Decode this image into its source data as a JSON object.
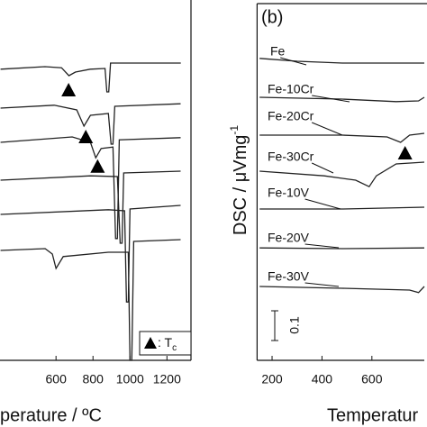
{
  "chart_data": [
    {
      "type": "line",
      "xlabel": "perature / ºC",
      "xlim": [
        297,
        1330
      ],
      "xticks": [
        600,
        800,
        1000,
        1200
      ],
      "ylim": [
        0,
        100
      ],
      "color": "#222",
      "series": [
        {
          "x": [
            300,
            540,
            630,
            670,
            705,
            785,
            865,
            875,
            885,
            895,
            1030,
            1275
          ],
          "values": [
            80.8,
            81.5,
            81.2,
            79,
            80,
            80.8,
            81,
            74.5,
            74.5,
            82.5,
            82.5,
            82.5
          ]
        },
        {
          "x": [
            300,
            590,
            712,
            751,
            786,
            883,
            898,
            908,
            918,
            1274
          ],
          "values": [
            70,
            70.8,
            69.5,
            65,
            68,
            68.5,
            60,
            60,
            70.5,
            71.2
          ]
        },
        {
          "x": [
            300,
            688,
            786,
            815,
            844,
            908,
            922,
            932,
            942,
            1274
          ],
          "values": [
            60.5,
            62,
            60.5,
            56.2,
            58.8,
            59.2,
            33.8,
            33.8,
            61.2,
            61.8
          ]
        },
        {
          "x": [
            300,
            786,
            932,
            947,
            957,
            966,
            1274
          ],
          "values": [
            50,
            51.2,
            51,
            32.5,
            32.5,
            52,
            52.5
          ]
        },
        {
          "x": [
            300,
            883,
            971,
            981,
            991,
            1000,
            1274
          ],
          "values": [
            40.5,
            41.8,
            41.5,
            16.2,
            16.2,
            42,
            43
          ]
        },
        {
          "x": [
            300,
            541,
            580,
            600,
            639,
            883,
            991,
            1000,
            1010,
            1020,
            1274
          ],
          "values": [
            30.5,
            31,
            29.5,
            25.5,
            28.8,
            30,
            30,
            0,
            0,
            33,
            33.5
          ]
        }
      ],
      "markers": [
        {
          "x": 668,
          "y": 75
        },
        {
          "x": 761,
          "y": 62
        },
        {
          "x": 825,
          "y": 53.8
        }
      ],
      "legend": {
        "text": ": T",
        "sub": "c"
      }
    },
    {
      "type": "line",
      "panel_label": "(b)",
      "xlabel": "Temperatur",
      "ylabel": "DSC / μVmg",
      "ylabel_sup": "-1",
      "xlim": [
        140,
        810
      ],
      "xticks": [
        200,
        400,
        600
      ],
      "ylim": [
        0,
        100
      ],
      "color": "#222",
      "scale_bar_label": "0.1",
      "series": [
        {
          "name": "Fe",
          "x": [
            150,
            301,
            481,
            661,
            810
          ],
          "values": [
            83.8,
            83,
            82.5,
            82.5,
            82.5
          ]
        },
        {
          "name": "Fe-10Cr",
          "x": [
            150,
            481,
            697,
            787,
            810
          ],
          "values": [
            73,
            72.5,
            71.8,
            72,
            73
          ]
        },
        {
          "name": "Fe-20Cr",
          "x": [
            150,
            481,
            661,
            715,
            751,
            810
          ],
          "values": [
            62.5,
            62.5,
            62,
            60.5,
            62.5,
            63
          ]
        },
        {
          "name": "Fe-30Cr",
          "x": [
            150,
            409,
            535,
            589,
            618,
            697,
            810
          ],
          "values": [
            52.5,
            51.2,
            50,
            48.2,
            51.2,
            54.5,
            55
          ]
        },
        {
          "name": "Fe-10V",
          "x": [
            150,
            481,
            810
          ],
          "values": [
            42,
            42,
            42.5
          ]
        },
        {
          "name": "Fe-20V",
          "x": [
            150,
            481,
            810
          ],
          "values": [
            31.2,
            31,
            31.2
          ]
        },
        {
          "name": "Fe-30V",
          "x": [
            150,
            481,
            751,
            787,
            810
          ],
          "values": [
            20.5,
            20,
            19.5,
            18.8,
            20.5
          ]
        }
      ],
      "markers": [
        {
          "x": 733,
          "y": 57.5
        }
      ]
    }
  ]
}
